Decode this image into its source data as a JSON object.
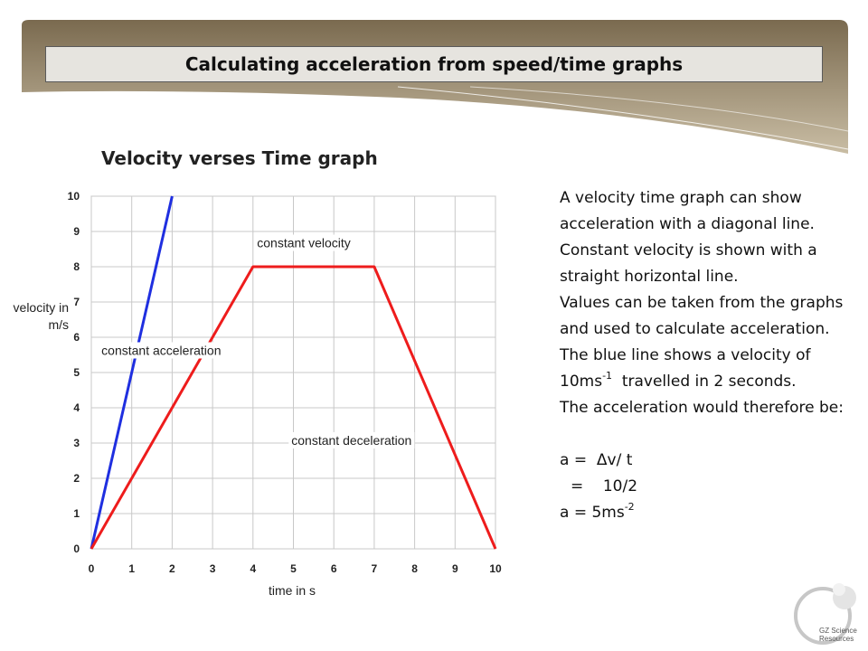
{
  "slide": {
    "title": "Calculating acceleration from speed/time graphs",
    "graph_heading": "Velocity verses Time graph",
    "colors": {
      "banner_dark": "#7a6a4f",
      "banner_light": "#c9bda4",
      "title_box": "#e6e4df"
    }
  },
  "chart_data": {
    "type": "line",
    "title": "",
    "xlabel": "time in s",
    "ylabel": "velocity in m/s",
    "ylabel_lines": [
      "velocity in",
      "m/s"
    ],
    "xlim": [
      0,
      10
    ],
    "ylim": [
      0,
      10
    ],
    "xticks": [
      "0",
      "1",
      "2",
      "3",
      "4",
      "5",
      "6",
      "7",
      "8",
      "9",
      "10"
    ],
    "yticks": [
      "0",
      "1",
      "2",
      "3",
      "4",
      "5",
      "6",
      "7",
      "8",
      "9",
      "10"
    ],
    "grid": true,
    "legend": "none",
    "series": [
      {
        "color": "#1f2fe0",
        "x": [
          0,
          2
        ],
        "y": [
          0,
          10
        ]
      },
      {
        "color": "#ee1c1c",
        "x": [
          0,
          4,
          7,
          10
        ],
        "y": [
          0,
          8,
          8,
          0
        ]
      }
    ],
    "annotations": [
      {
        "text": "constant velocity",
        "x": 4.1,
        "y": 8.55
      },
      {
        "text": "constant acceleration",
        "x": 0.25,
        "y": 5.5
      },
      {
        "text": "constant deceleration",
        "x": 4.95,
        "y": 2.95
      }
    ]
  },
  "explanation": {
    "p1": "A velocity time graph can show acceleration with a diagonal line.",
    "p2": "Constant velocity is shown with a straight horizontal line.",
    "p3": "Values can be taken from the graphs and used to calculate acceleration.",
    "p4a": "The blue line shows a velocity of 10ms",
    "p4sup": "-1",
    "p4b": "  travelled in 2 seconds.",
    "p5": "The acceleration would therefore be:",
    "eq1": "a =  Δv/ t",
    "eq2": "=    10/2",
    "eq3a": "a = 5ms",
    "eq3sup": "-2"
  },
  "logo": {
    "line1": "GZ Science",
    "line2": "Resources"
  }
}
